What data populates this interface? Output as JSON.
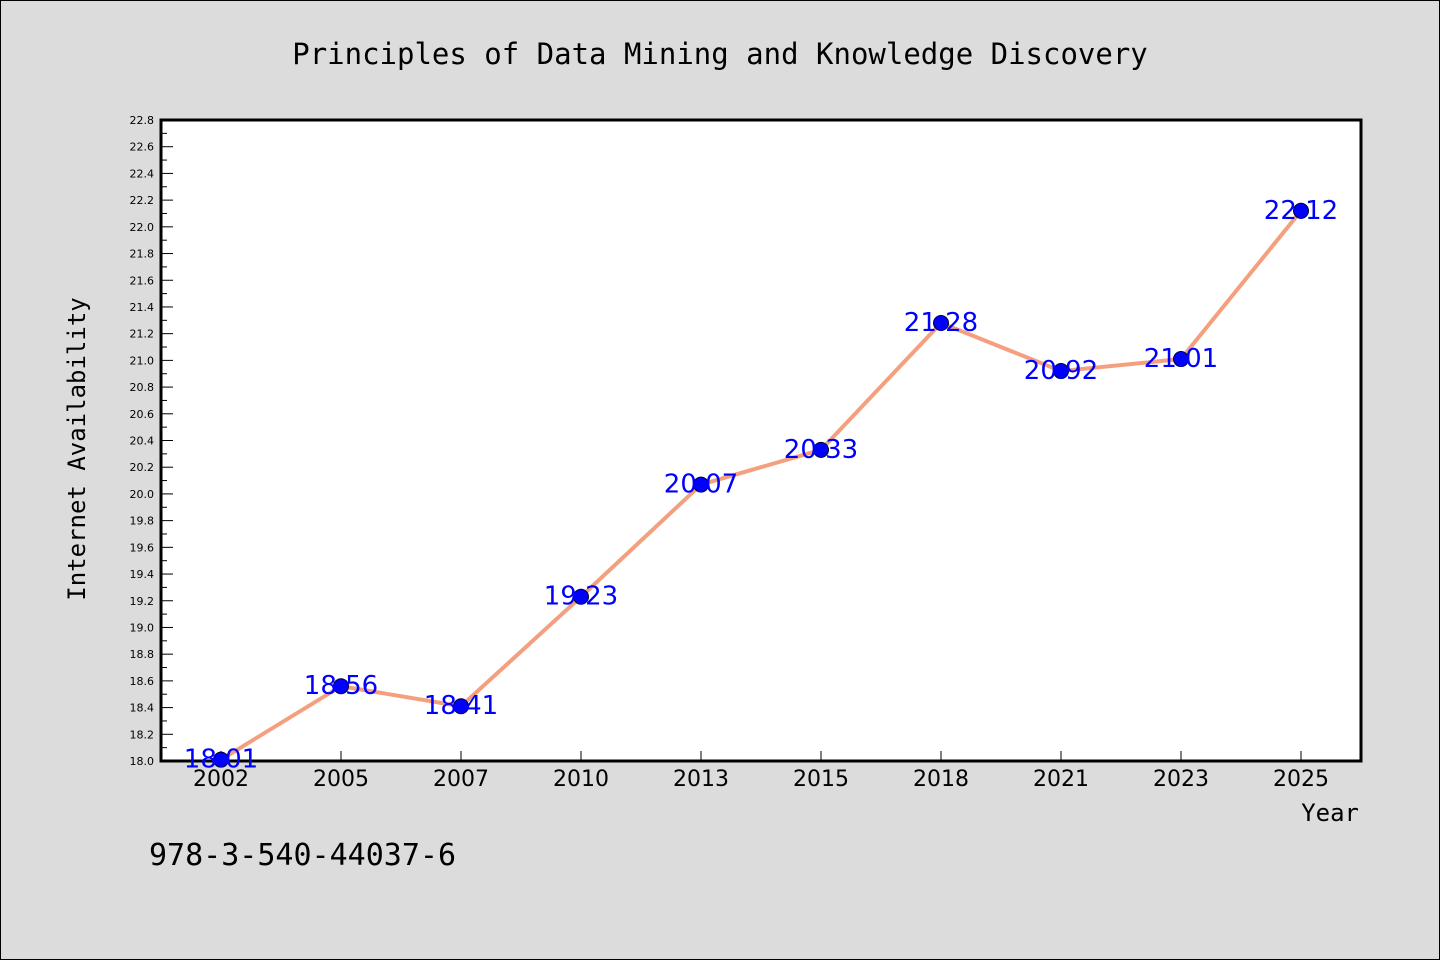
{
  "chart_data": {
    "type": "line",
    "title": "Principles of Data Mining and Knowledge Discovery",
    "xlabel": "Year",
    "ylabel": "Internet Availability",
    "categories": [
      "2002",
      "2005",
      "2007",
      "2010",
      "2013",
      "2015",
      "2018",
      "2021",
      "2023",
      "2025"
    ],
    "series": [
      {
        "values": [
          18.01,
          18.56,
          18.41,
          19.23,
          20.07,
          20.33,
          21.28,
          20.92,
          21.01,
          22.12
        ],
        "labels": [
          "18.01",
          "18.56",
          "18.41",
          "19.23",
          "20.07",
          "20.33",
          "21.28",
          "20.92",
          "21.01",
          "22.12"
        ],
        "line_color": "#f4a07f",
        "marker_color": "#0000ff"
      }
    ],
    "ylim": [
      18.0,
      22.8
    ],
    "yticks": [
      "18.0",
      "18.2",
      "18.4",
      "18.6",
      "18.8",
      "19.0",
      "19.2",
      "19.4",
      "19.6",
      "19.8",
      "20.0",
      "20.2",
      "20.4",
      "20.6",
      "20.8",
      "21.0",
      "21.2",
      "21.4",
      "21.6",
      "21.8",
      "22.0",
      "22.2",
      "22.4",
      "22.6",
      "22.8"
    ],
    "grid": false,
    "legend": "none"
  },
  "footer_text": "978-3-540-44037-6",
  "colors": {
    "background": "#dcdcdc",
    "plot_background": "#ffffff",
    "line": "#f4a07f",
    "marker": "#0000ff",
    "data_label": "#0000ff"
  }
}
